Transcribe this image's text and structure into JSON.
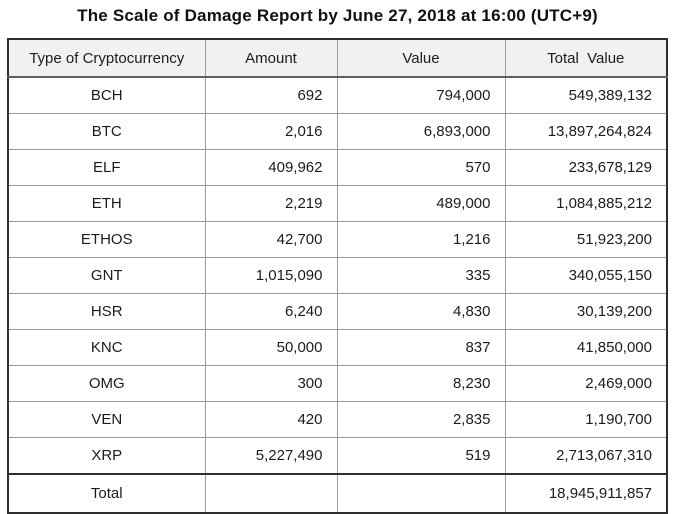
{
  "title": "The Scale of Damage Report by June 27, 2018 at 16:00 (UTC+9)",
  "colors": {
    "header_background": "#f1f1f1",
    "outer_border": "#2e2e2e",
    "inner_border": "#9c9c9c",
    "text": "#1c1c1c"
  },
  "table": {
    "columns": [
      "Type of Cryptocurrency",
      "Amount",
      "Value",
      "Total  Value"
    ],
    "rows": [
      {
        "type": "BCH",
        "amount": "692",
        "value": "794,000",
        "total": "549,389,132"
      },
      {
        "type": "BTC",
        "amount": "2,016",
        "value": "6,893,000",
        "total": "13,897,264,824"
      },
      {
        "type": "ELF",
        "amount": "409,962",
        "value": "570",
        "total": "233,678,129"
      },
      {
        "type": "ETH",
        "amount": "2,219",
        "value": "489,000",
        "total": "1,084,885,212"
      },
      {
        "type": "ETHOS",
        "amount": "42,700",
        "value": "1,216",
        "total": "51,923,200"
      },
      {
        "type": "GNT",
        "amount": "1,015,090",
        "value": "335",
        "total": "340,055,150"
      },
      {
        "type": "HSR",
        "amount": "6,240",
        "value": "4,830",
        "total": "30,139,200"
      },
      {
        "type": "KNC",
        "amount": "50,000",
        "value": "837",
        "total": "41,850,000"
      },
      {
        "type": "OMG",
        "amount": "300",
        "value": "8,230",
        "total": "2,469,000"
      },
      {
        "type": "VEN",
        "amount": "420",
        "value": "2,835",
        "total": "1,190,700"
      },
      {
        "type": "XRP",
        "amount": "5,227,490",
        "value": "519",
        "total": "2,713,067,310"
      }
    ],
    "footer": {
      "label": "Total",
      "amount": "",
      "value": "",
      "total": "18,945,911,857"
    }
  },
  "chart_data": {
    "type": "table",
    "title": "The Scale of Damage Report by June 27, 2018 at 16:00 (UTC+9)",
    "columns": [
      "Type of Cryptocurrency",
      "Amount",
      "Value",
      "Total Value"
    ],
    "rows": [
      [
        "BCH",
        692,
        794000,
        549389132
      ],
      [
        "BTC",
        2016,
        6893000,
        13897264824
      ],
      [
        "ELF",
        409962,
        570,
        233678129
      ],
      [
        "ETH",
        2219,
        489000,
        1084885212
      ],
      [
        "ETHOS",
        42700,
        1216,
        51923200
      ],
      [
        "GNT",
        1015090,
        335,
        340055150
      ],
      [
        "HSR",
        6240,
        4830,
        30139200
      ],
      [
        "KNC",
        50000,
        837,
        41850000
      ],
      [
        "OMG",
        300,
        8230,
        2469000
      ],
      [
        "VEN",
        420,
        2835,
        1190700
      ],
      [
        "XRP",
        5227490,
        519,
        2713067310
      ]
    ],
    "footer_row": [
      "Total",
      null,
      null,
      18945911857
    ]
  }
}
